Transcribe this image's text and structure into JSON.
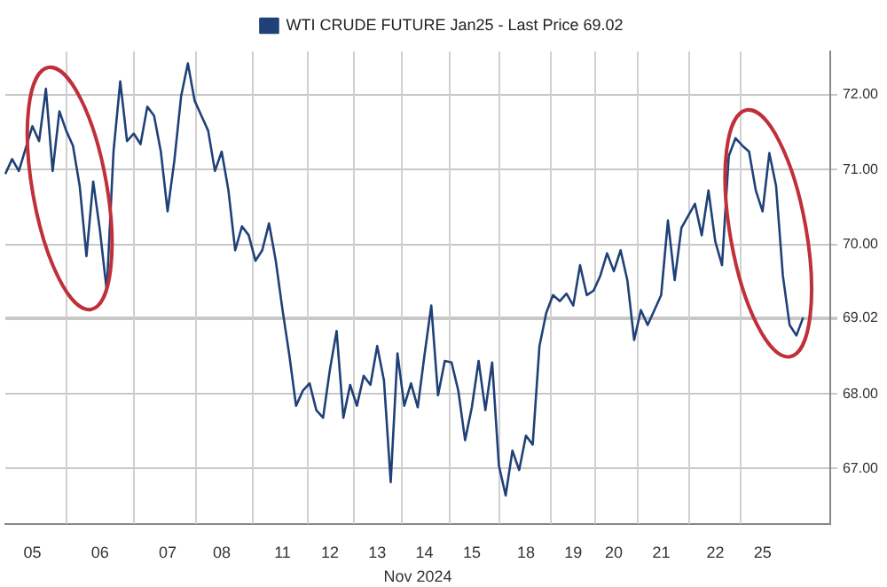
{
  "chart_data": {
    "type": "line",
    "xlabel": "Nov 2024",
    "legend": "top",
    "grid": true,
    "marker": "none",
    "line_style": "solid",
    "categories": [
      null,
      null,
      null,
      null,
      "05",
      null,
      null,
      null,
      null,
      null,
      null,
      null,
      null,
      null,
      "06",
      null,
      null,
      null,
      null,
      null,
      null,
      null,
      null,
      null,
      "07",
      null,
      null,
      null,
      null,
      null,
      null,
      null,
      "08",
      null,
      null,
      null,
      null,
      null,
      null,
      null,
      null,
      "11",
      null,
      null,
      null,
      null,
      null,
      null,
      "12",
      null,
      null,
      null,
      null,
      null,
      null,
      "13",
      null,
      null,
      null,
      null,
      null,
      null,
      "14",
      null,
      null,
      null,
      null,
      null,
      null,
      "15",
      null,
      null,
      null,
      null,
      null,
      null,
      null,
      "18",
      null,
      null,
      null,
      null,
      null,
      null,
      "19",
      null,
      null,
      null,
      null,
      null,
      "20",
      null,
      null,
      null,
      null,
      null,
      null,
      "21",
      null,
      null,
      null,
      null,
      null,
      null,
      null,
      "22",
      null,
      null,
      null,
      null,
      null,
      null,
      "25",
      null,
      null,
      null,
      null,
      null,
      null,
      null,
      null,
      null,
      null
    ],
    "ylim": [
      66.26,
      72.58
    ],
    "yticks": [
      {
        "value": 67,
        "label": "67.00"
      },
      {
        "value": 68,
        "label": "68.00"
      },
      {
        "value": 69,
        "label": null
      },
      {
        "value": 69.02,
        "label": "69.02"
      },
      {
        "value": 70,
        "label": "70.00"
      },
      {
        "value": 71,
        "label": "71.00"
      },
      {
        "value": 72,
        "label": "72.00"
      }
    ],
    "series": [
      {
        "name": "WTI CRUDE FUTURE Jan25 - Last Price 69.02",
        "color": "#1f4178",
        "values": [
          70.94,
          71.14,
          70.98,
          71.28,
          71.58,
          71.38,
          72.08,
          70.98,
          71.78,
          71.52,
          71.32,
          70.78,
          69.84,
          70.84,
          70.18,
          69.38,
          71.24,
          72.18,
          71.38,
          71.48,
          71.34,
          71.84,
          71.72,
          71.24,
          70.44,
          71.12,
          71.98,
          72.42,
          71.92,
          71.72,
          71.52,
          70.98,
          71.24,
          70.72,
          69.92,
          70.24,
          70.12,
          69.78,
          69.92,
          70.28,
          69.78,
          69.12,
          68.52,
          67.84,
          68.04,
          68.14,
          67.78,
          67.68,
          68.32,
          68.84,
          67.68,
          68.12,
          67.84,
          68.24,
          68.12,
          68.64,
          68.18,
          66.82,
          68.54,
          67.84,
          68.14,
          67.82,
          68.52,
          69.18,
          67.98,
          68.44,
          68.42,
          68.04,
          67.38,
          67.82,
          68.44,
          67.78,
          68.42,
          67.04,
          66.64,
          67.24,
          66.98,
          67.44,
          67.32,
          68.64,
          69.08,
          69.32,
          69.24,
          69.34,
          69.18,
          69.72,
          69.32,
          69.38,
          69.58,
          69.88,
          69.64,
          69.92,
          69.52,
          68.72,
          69.12,
          68.92,
          69.12,
          69.32,
          70.32,
          69.52,
          70.22,
          70.38,
          70.54,
          70.12,
          70.72,
          70.04,
          69.72,
          71.18,
          71.42,
          71.32,
          71.24,
          70.72,
          70.44,
          71.22,
          70.78,
          69.58,
          68.92,
          68.78,
          69.02,
          null,
          null,
          null,
          null
        ]
      }
    ]
  }
}
